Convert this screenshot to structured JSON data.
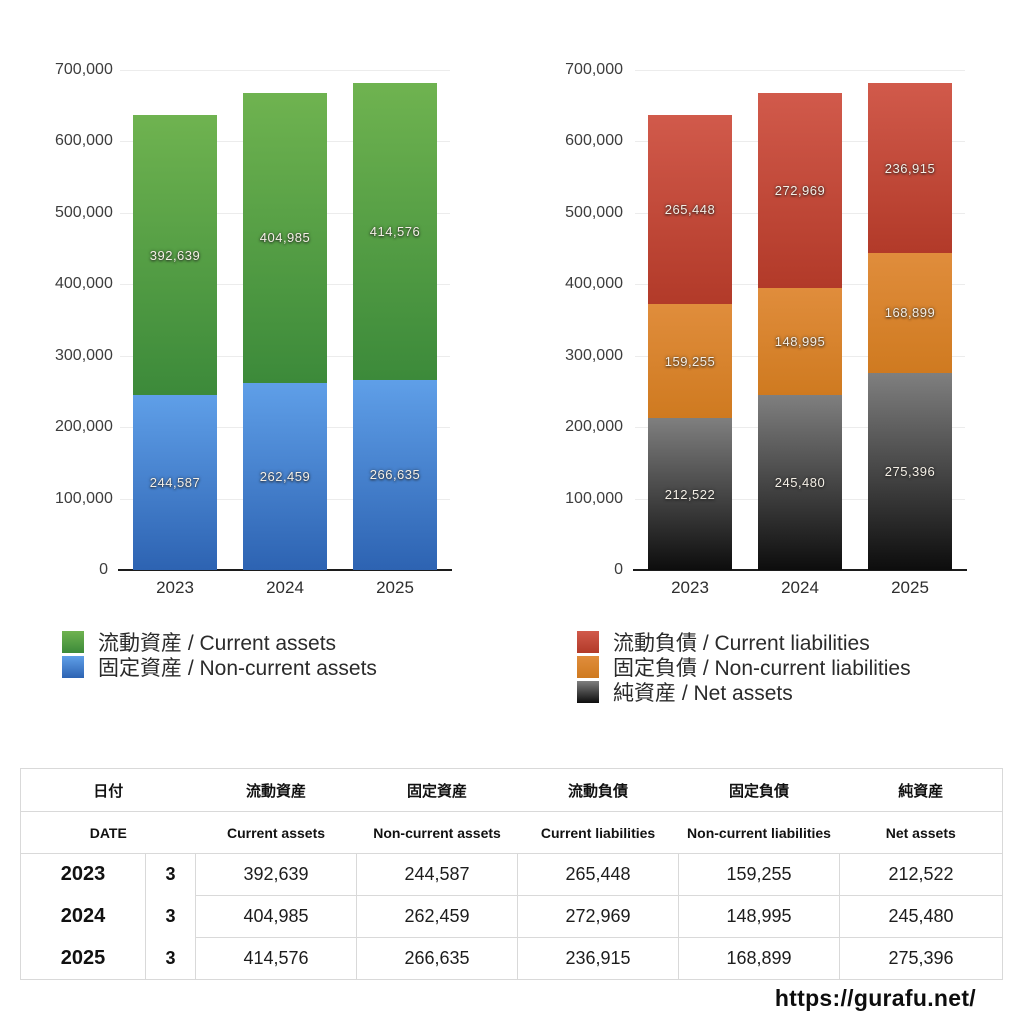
{
  "chart_data": [
    {
      "type": "bar",
      "stacked": true,
      "title": "",
      "categories": [
        "2023",
        "2024",
        "2025"
      ],
      "ylim": [
        0,
        700000
      ],
      "y_tick_step": 100000,
      "y_tick_labels": [
        "700,000",
        "600,000",
        "500,000",
        "400,000",
        "300,000",
        "200,000",
        "100,000",
        "0"
      ],
      "grid": true,
      "legend_position": "bottom-left",
      "series": [
        {
          "key": "current-assets",
          "label": "流動資産 / Current assets",
          "values": [
            392639,
            404985,
            414576
          ],
          "color_top": "#6fb350",
          "color_bottom": "#3c8a3a"
        },
        {
          "key": "non-current-assets",
          "label": "固定資産 / Non-current assets",
          "values": [
            244587,
            262459,
            266635
          ],
          "color_top": "#5f9fe8",
          "color_bottom": "#2d63b2"
        }
      ]
    },
    {
      "type": "bar",
      "stacked": true,
      "title": "",
      "categories": [
        "2023",
        "2024",
        "2025"
      ],
      "ylim": [
        0,
        700000
      ],
      "y_tick_step": 100000,
      "y_tick_labels": [
        "700,000",
        "600,000",
        "500,000",
        "400,000",
        "300,000",
        "200,000",
        "100,000",
        "0"
      ],
      "grid": true,
      "legend_position": "bottom-left",
      "series": [
        {
          "key": "current-liabilities",
          "label": "流動負債 / Current liabilities",
          "values": [
            265448,
            272969,
            236915
          ],
          "color_top": "#d15a4b",
          "color_bottom": "#b23a29"
        },
        {
          "key": "non-current-liabilities",
          "label": "固定負債 / Non-current liabilities",
          "values": [
            159255,
            148995,
            168899
          ],
          "color_top": "#e08d3c",
          "color_bottom": "#cf7a20"
        },
        {
          "key": "net-assets",
          "label": "純資産 / Net assets",
          "values": [
            212522,
            245480,
            275396
          ],
          "color_top": "#7f7f7f",
          "color_bottom": "#0d0d0d"
        }
      ]
    }
  ],
  "table": {
    "header_ja": [
      "日付",
      "流動資産",
      "固定資産",
      "流動負債",
      "固定負債",
      "純資産"
    ],
    "header_en": [
      "DATE",
      "Current assets",
      "Non-current assets",
      "Current liabilities",
      "Non-current liabilities",
      "Net assets"
    ],
    "rows": [
      {
        "year": "2023",
        "month": "3",
        "values": [
          "392,639",
          "244,587",
          "265,448",
          "159,255",
          "212,522"
        ]
      },
      {
        "year": "2024",
        "month": "3",
        "values": [
          "404,985",
          "262,459",
          "272,969",
          "148,995",
          "245,480"
        ]
      },
      {
        "year": "2025",
        "month": "3",
        "values": [
          "414,576",
          "266,635",
          "236,915",
          "168,899",
          "275,396"
        ]
      }
    ]
  },
  "footer": {
    "url": "https://gurafu.net/"
  }
}
